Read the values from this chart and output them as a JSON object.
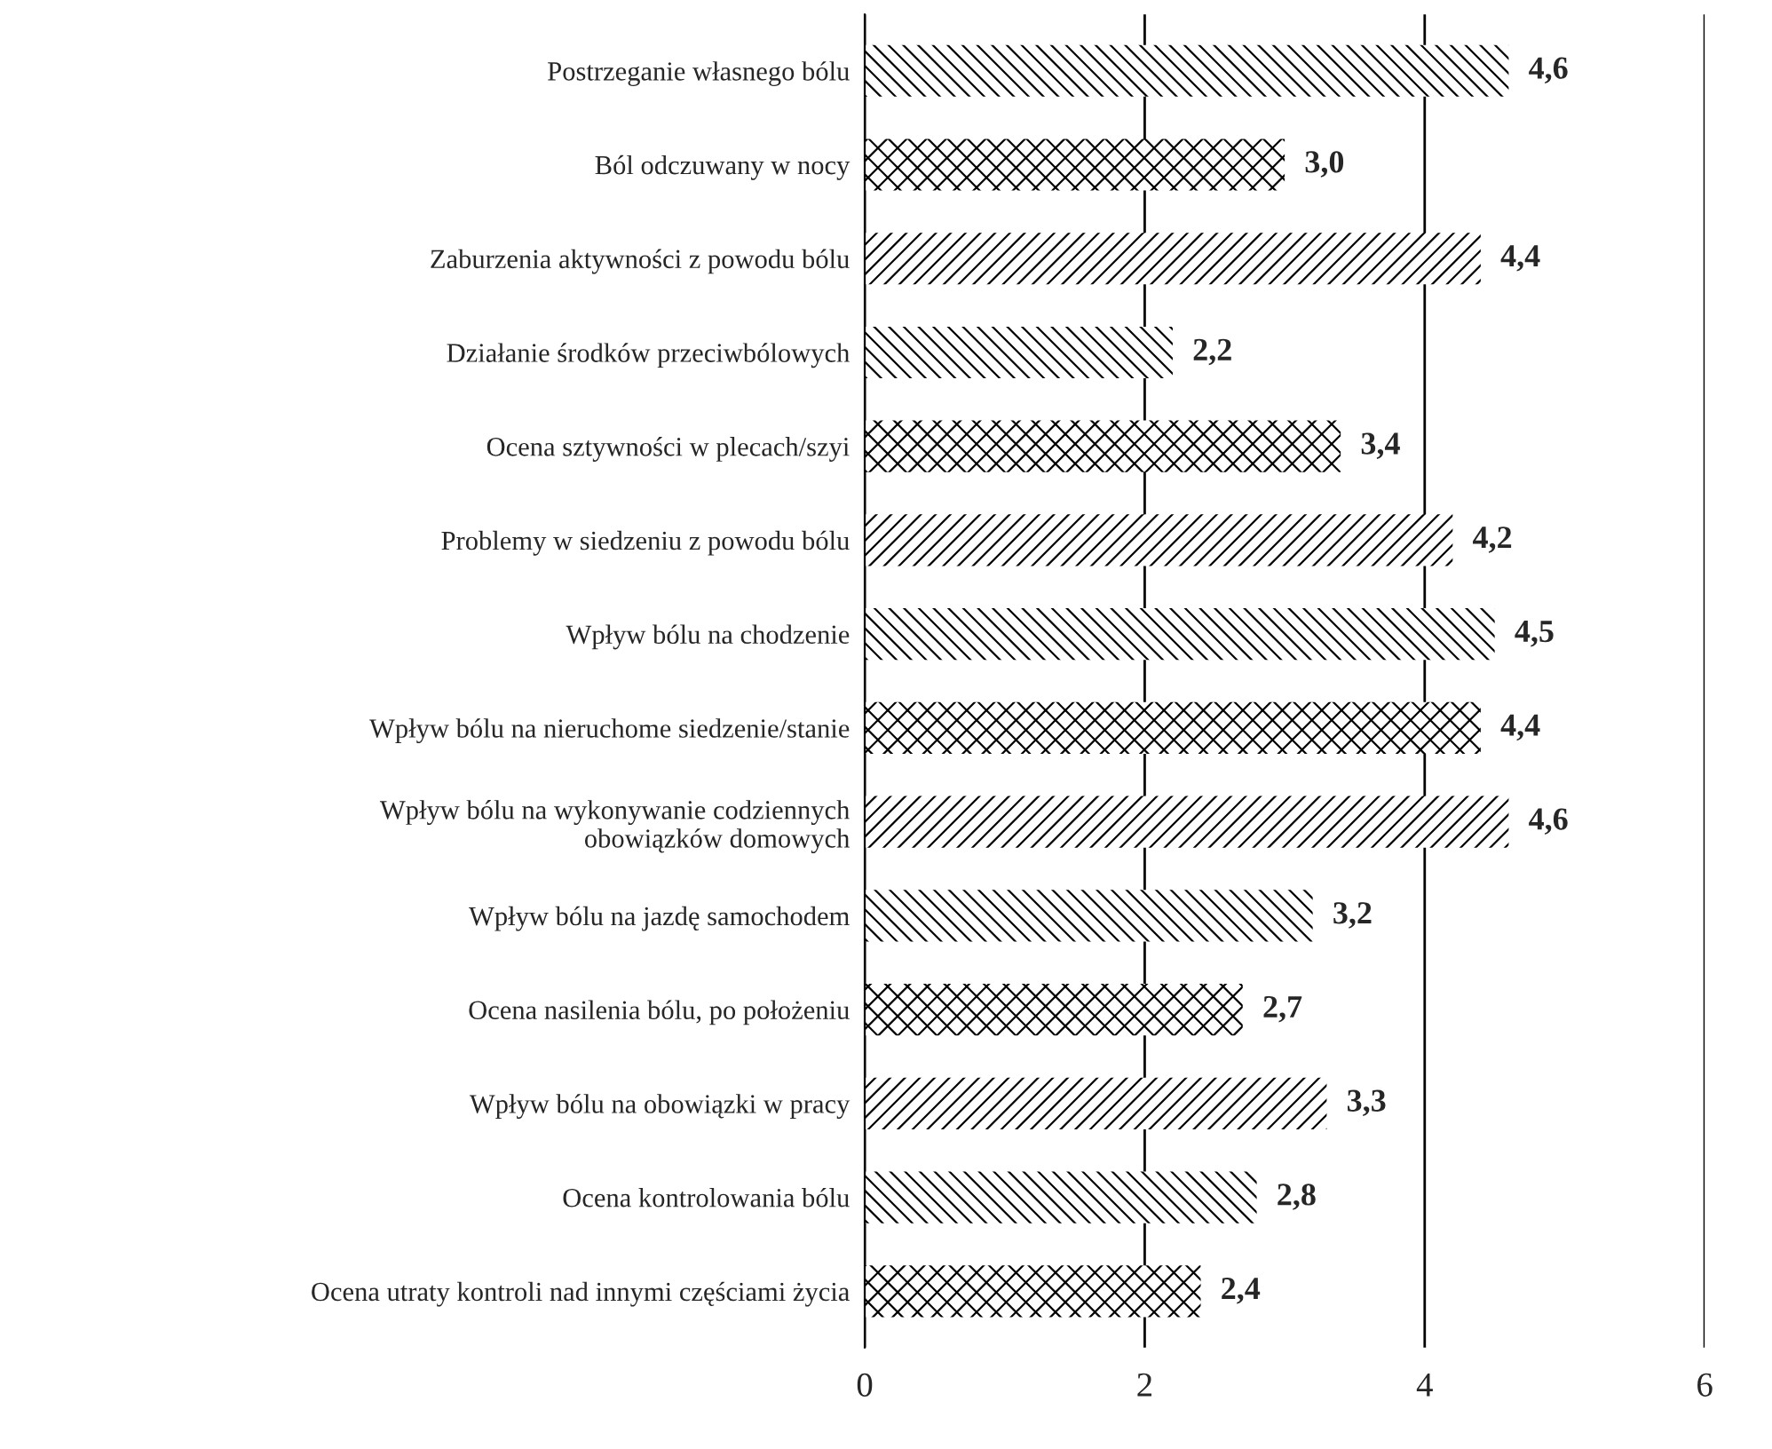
{
  "chart_data": {
    "type": "bar",
    "orientation": "horizontal",
    "categories": [
      "Postrzeganie własnego bólu",
      "Ból odczuwany w nocy",
      "Zaburzenia aktywności z powodu bólu",
      "Działanie środków przeciwbólowych",
      "Ocena sztywności w plecach/szyi",
      "Problemy w siedzeniu z powodu bólu",
      "Wpływ bólu na chodzenie",
      "Wpływ bólu na nieruchome siedzenie/stanie",
      "Wpływ bólu na wykonywanie codziennych\nobowiązków domowych",
      "Wpływ bólu na jazdę samochodem",
      "Ocena nasilenia bólu, po położeniu",
      "Wpływ bólu na obowiązki w pracy",
      "Ocena kontrolowania bólu",
      "Ocena utraty kontroli nad innymi częściami życia"
    ],
    "values": [
      4.6,
      3.0,
      4.4,
      2.2,
      3.4,
      4.2,
      4.5,
      4.4,
      4.6,
      3.2,
      2.7,
      3.3,
      2.8,
      2.4
    ],
    "value_labels": [
      "4,6",
      "3,0",
      "4,4",
      "2,2",
      "3,4",
      "4,2",
      "4,5",
      "4,4",
      "4,6",
      "3,2",
      "2,7",
      "3,3",
      "2,8",
      "2,4"
    ],
    "color": "#000000",
    "xlim": [
      0,
      6
    ],
    "xticks": [
      0,
      2,
      4,
      6
    ],
    "grid": "x"
  }
}
